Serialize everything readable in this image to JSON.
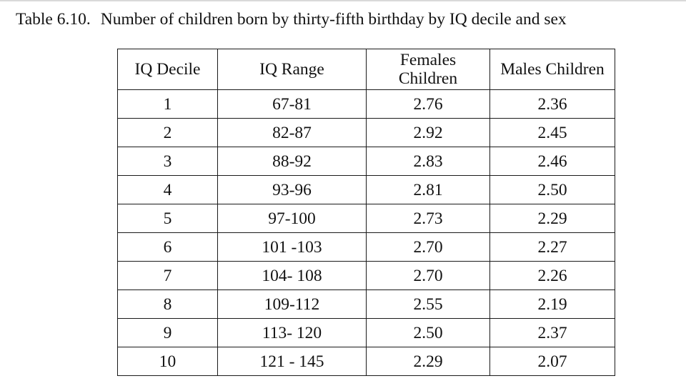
{
  "caption": {
    "number": "Table 6.10.",
    "title": "Number of children born by thirty-fifth birthday by IQ decile and sex"
  },
  "table": {
    "headers": {
      "decile": "IQ Decile",
      "range": "IQ Range",
      "females_line1": "Females",
      "females_line2": "Children",
      "males": "Males Children"
    },
    "rows": [
      {
        "decile": "1",
        "range": "67-81",
        "females": "2.76",
        "males": "2.36"
      },
      {
        "decile": "2",
        "range": "82-87",
        "females": "2.92",
        "males": "2.45"
      },
      {
        "decile": "3",
        "range": "88-92",
        "females": "2.83",
        "males": "2.46"
      },
      {
        "decile": "4",
        "range": "93-96",
        "females": "2.81",
        "males": "2.50"
      },
      {
        "decile": "5",
        "range": "97-100",
        "females": "2.73",
        "males": "2.29"
      },
      {
        "decile": "6",
        "range": "101 -103",
        "females": "2.70",
        "males": "2.27"
      },
      {
        "decile": "7",
        "range": "104- 108",
        "females": "2.70",
        "males": "2.26"
      },
      {
        "decile": "8",
        "range": "109-112",
        "females": "2.55",
        "males": "2.19"
      },
      {
        "decile": "9",
        "range": "113- 120",
        "females": "2.50",
        "males": "2.37"
      },
      {
        "decile": "10",
        "range": "121 - 145",
        "females": "2.29",
        "males": "2.07"
      }
    ]
  }
}
